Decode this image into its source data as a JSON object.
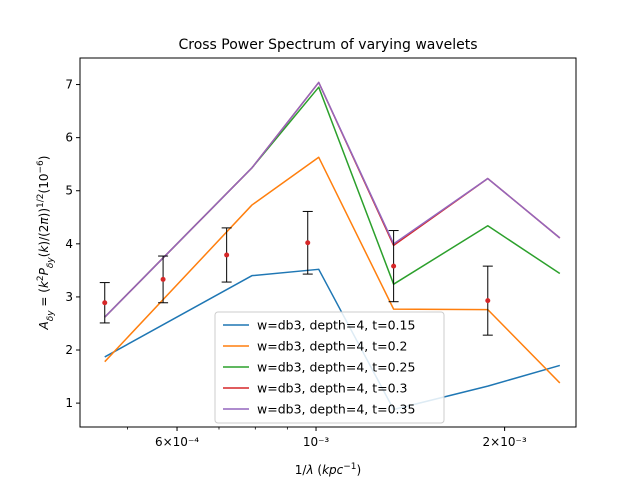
{
  "chart_data": {
    "type": "line",
    "title": "Cross Power Spectrum of varying wavelets",
    "xlabel": "1/λ (kpc⁻¹)",
    "ylabel": "A_δy = (k²P_δy(k)/(2π))^(1/2) (10⁻⁶)",
    "x_scale": "log",
    "xlim": [
      0.00042,
      0.0026
    ],
    "ylim": [
      0.55,
      7.5
    ],
    "x_ticks": [
      {
        "value": 0.0006,
        "label": "6×10⁻⁴"
      },
      {
        "value": 0.001,
        "label": "10⁻³"
      },
      {
        "value": 0.002,
        "label": "2×10⁻³"
      }
    ],
    "y_ticks": [
      1,
      2,
      3,
      4,
      5,
      6,
      7
    ],
    "x": [
      0.00046,
      0.00079,
      0.00101,
      0.00133,
      0.00188,
      0.00245
    ],
    "series": [
      {
        "name": "w=db3, depth=4, t=0.15",
        "color": "#1f77b4",
        "values": [
          1.87,
          3.4,
          3.52,
          0.88,
          1.32,
          1.71
        ]
      },
      {
        "name": "w=db3, depth=4, t=0.2",
        "color": "#ff7f0e",
        "values": [
          1.78,
          4.73,
          5.63,
          2.77,
          2.76,
          1.38
        ]
      },
      {
        "name": "w=db3, depth=4, t=0.25",
        "color": "#2ca02c",
        "values": [
          2.62,
          5.43,
          6.95,
          3.24,
          4.34,
          3.44
        ]
      },
      {
        "name": "w=db3, depth=4, t=0.3",
        "color": "#d62728",
        "values": [
          2.62,
          5.43,
          7.04,
          3.97,
          5.23,
          4.11
        ]
      },
      {
        "name": "w=db3, depth=4, t=0.35",
        "color": "#9467bd",
        "values": [
          2.62,
          5.43,
          7.04,
          4.0,
          5.23,
          4.11
        ]
      }
    ],
    "errorbars": {
      "color": "#d62728",
      "points": [
        {
          "x": 0.00046,
          "y": 2.89,
          "yerr_low": 0.38,
          "yerr_high": 0.38
        },
        {
          "x": 0.00057,
          "y": 3.33,
          "yerr_low": 0.44,
          "yerr_high": 0.44
        },
        {
          "x": 0.00072,
          "y": 3.79,
          "yerr_low": 0.51,
          "yerr_high": 0.51
        },
        {
          "x": 0.00097,
          "y": 4.02,
          "yerr_low": 0.59,
          "yerr_high": 0.59
        },
        {
          "x": 0.00133,
          "y": 3.58,
          "yerr_low": 0.67,
          "yerr_high": 0.67
        },
        {
          "x": 0.00188,
          "y": 2.93,
          "yerr_low": 0.65,
          "yerr_high": 0.65
        }
      ]
    },
    "legend_position": "lower-center",
    "grid": false
  }
}
